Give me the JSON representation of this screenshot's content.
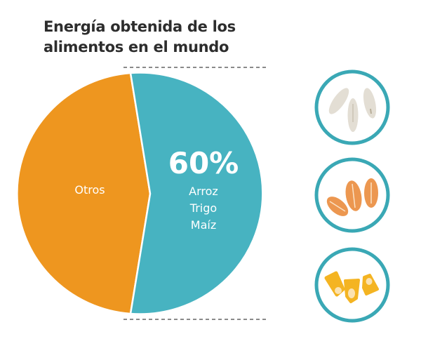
{
  "title_lines": [
    "Energía obtenida de los",
    "alimentos en el mundo"
  ],
  "chart_data": {
    "type": "pie",
    "title": "Energía obtenida de los alimentos en el mundo",
    "slices": [
      {
        "label": "Otros",
        "value": 40,
        "color": "#ee961f"
      },
      {
        "label_lines": [
          "Arroz",
          "Trigo",
          "Maíz"
        ],
        "value": 60,
        "value_label": "60%",
        "color": "#47b3c1"
      }
    ]
  },
  "icons": [
    {
      "name": "rice-grains-icon",
      "label": "Arroz"
    },
    {
      "name": "wheat-grains-icon",
      "label": "Trigo"
    },
    {
      "name": "corn-kernels-icon",
      "label": "Maíz"
    }
  ],
  "colors": {
    "ring": "#3aa8b5",
    "orange": "#ee961f",
    "teal": "#47b3c1",
    "title": "#2d2d2d"
  }
}
